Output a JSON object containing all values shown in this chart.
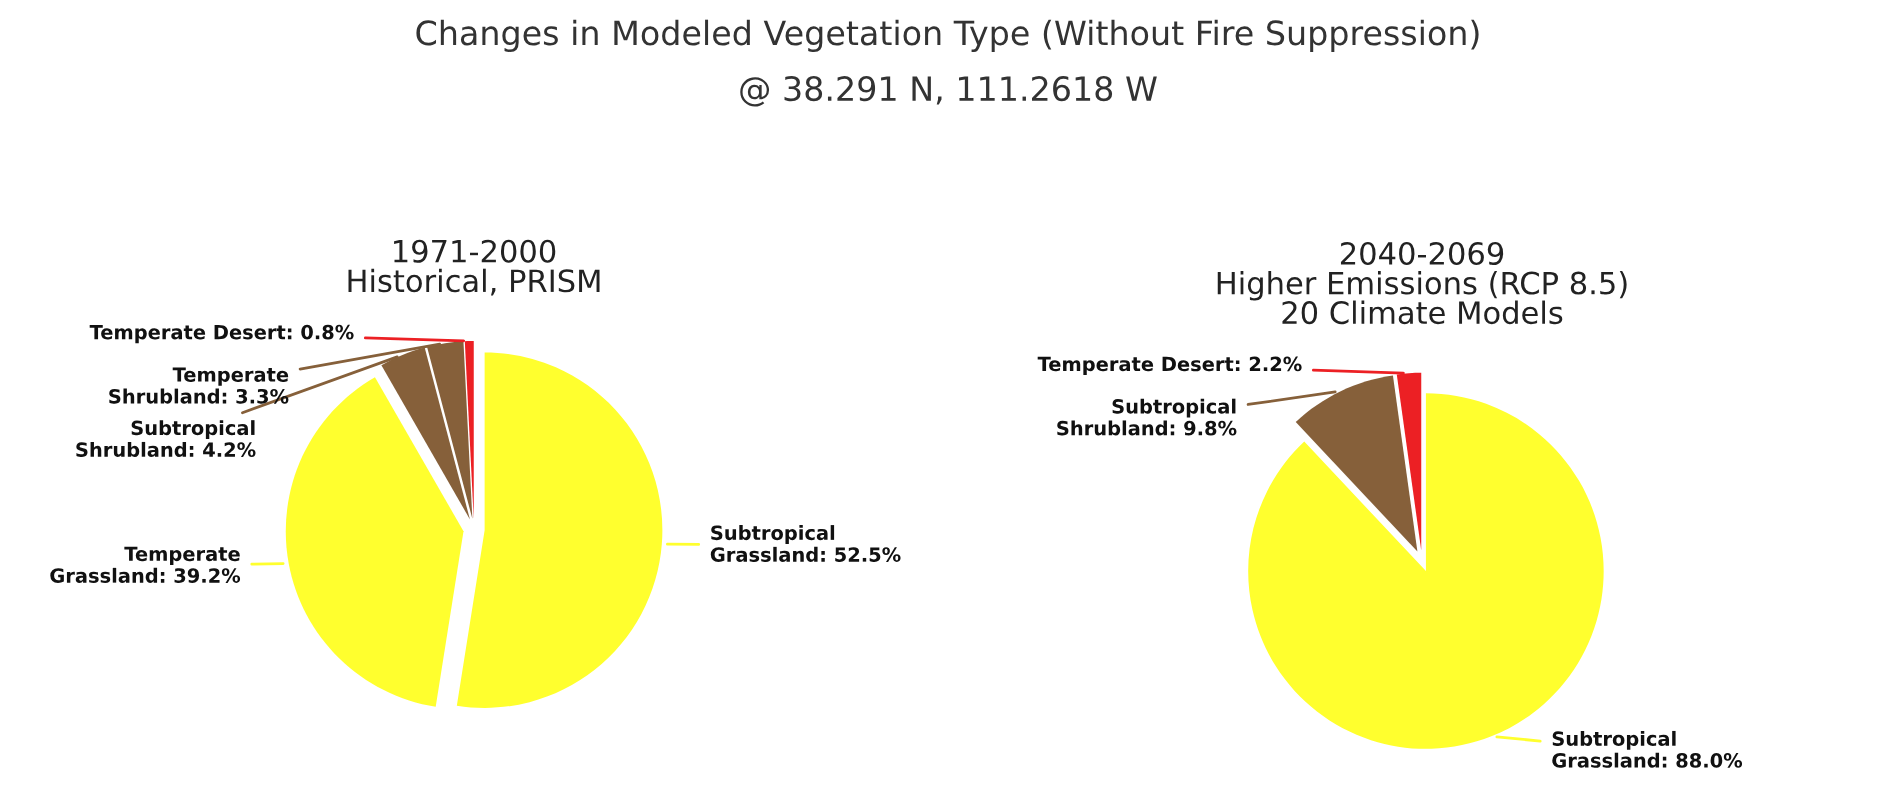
{
  "chart_data": [
    {
      "type": "other",
      "title": "Changes in Modeled Vegetation Type (Without Fire Suppression)",
      "subtitle": "@ 38.291 N, 111.2618 W"
    },
    {
      "type": "pie",
      "title": "1971-2000\nHistorical, PRISM",
      "categories": [
        "Subtropical\nGrassland",
        "Temperate\nGrassland",
        "Subtropical\nShrubland",
        "Temperate\nShrubland",
        "Temperate Desert"
      ],
      "values": [
        52.5,
        39.2,
        4.2,
        3.3,
        0.8
      ],
      "value_labels": [
        "52.5%",
        "39.2%",
        "4.2%",
        "3.3%",
        "0.8%"
      ],
      "colors": [
        "#ffff2e",
        "#ffff2e",
        "#86603a",
        "#86603a",
        "#ec2024"
      ]
    },
    {
      "type": "pie",
      "title": "2040-2069\nHigher Emissions (RCP 8.5)\n20 Climate Models",
      "categories": [
        "Subtropical\nGrassland",
        "Subtropical\nShrubland",
        "Temperate Desert"
      ],
      "values": [
        88.0,
        9.8,
        2.2
      ],
      "value_labels": [
        "88.0%",
        "9.8%",
        "2.2%"
      ],
      "colors": [
        "#ffff2e",
        "#86603a",
        "#ec2024"
      ]
    }
  ]
}
